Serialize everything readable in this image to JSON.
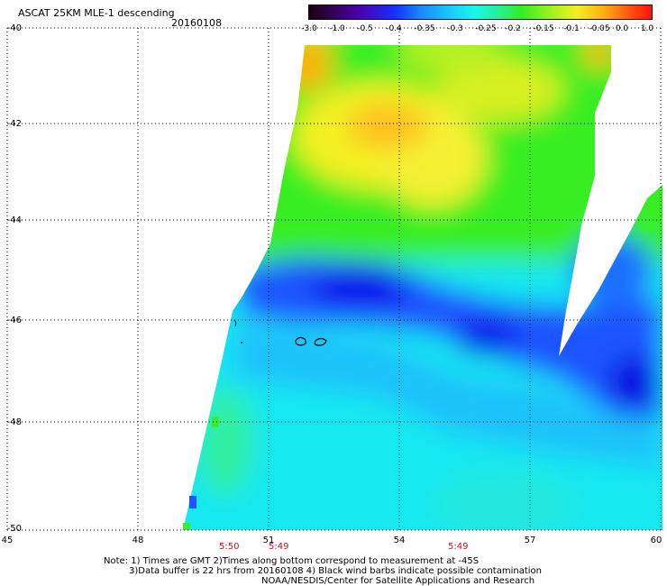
{
  "header": {
    "title": "ASCAT 25KM MLE-1 descending",
    "date": "20160108"
  },
  "colorbar": {
    "ticks": [
      "-3.0",
      "-1.0",
      "-0.5",
      "-0.4",
      "-0.35",
      "-0.3",
      "-0.25",
      "-0.2",
      "-0.15",
      "-0.1",
      "-0.05",
      "0.0",
      "1.0"
    ]
  },
  "axes": {
    "y_labels": [
      "-40",
      "-42",
      "-44",
      "-46",
      "-48",
      "-50"
    ],
    "x_labels": [
      "45",
      "48",
      "51",
      "54",
      "57",
      "60"
    ]
  },
  "times": [
    "5:50",
    "5:49",
    "5:49"
  ],
  "notes": {
    "line1": "Note: 1) Times are GMT 2)Times along bottom correspond to measurement at -45S",
    "line2": "3)Data buffer is 22 hrs from 20160108 4) Black wind barbs indicate possible contamination",
    "line3": "NOAA/NESDIS/Center for Satellite Applications and Research"
  },
  "colors": {
    "blue_deep": "#1010e0",
    "blue": "#1a55ff",
    "cyan": "#19e8f0",
    "green": "#33ee22",
    "yellow": "#f2f020",
    "orange": "#ffa010"
  }
}
